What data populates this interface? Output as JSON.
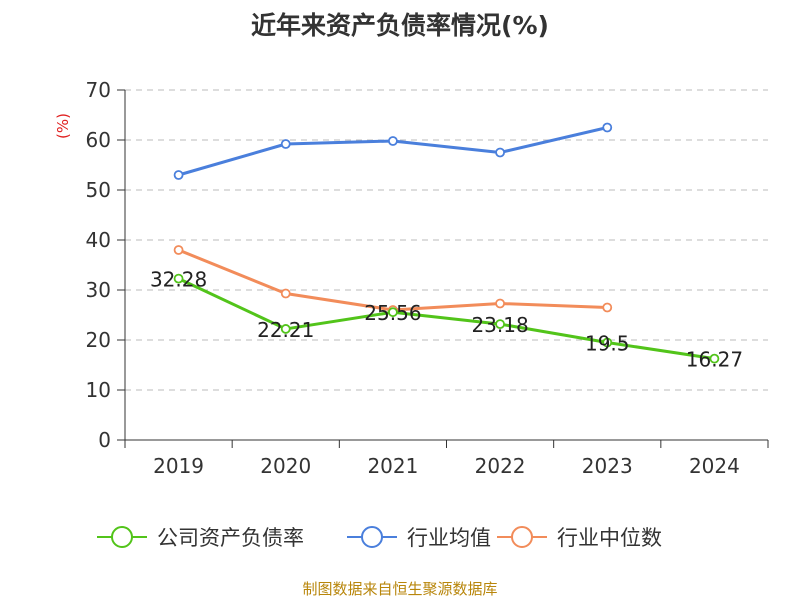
{
  "chart_data": {
    "type": "line",
    "title": "近年来资产负债率情况(%)",
    "unit_label": "(%)",
    "categories": [
      "2019",
      "2020",
      "2021",
      "2022",
      "2023",
      "2024"
    ],
    "ylim": [
      0,
      70
    ],
    "yticks": [
      0,
      10,
      20,
      30,
      40,
      50,
      60,
      70
    ],
    "grid": true,
    "legend_position": "bottom",
    "series": [
      {
        "name": "公司资产负债率",
        "color": "#52c41a",
        "values": [
          32.28,
          22.21,
          25.56,
          23.18,
          19.5,
          16.27
        ],
        "data_labels": [
          "32.28",
          "22.21",
          "25.56",
          "23.18",
          "19.5",
          "16.27"
        ]
      },
      {
        "name": "行业均值",
        "color": "#4a7fdc",
        "values": [
          53,
          59.2,
          59.8,
          57.5,
          62.5,
          null
        ]
      },
      {
        "name": "行业中位数",
        "color": "#f28c5a",
        "values": [
          38,
          29.3,
          26,
          27.3,
          26.5,
          null
        ]
      }
    ]
  },
  "source": "制图数据来自恒生聚源数据库"
}
